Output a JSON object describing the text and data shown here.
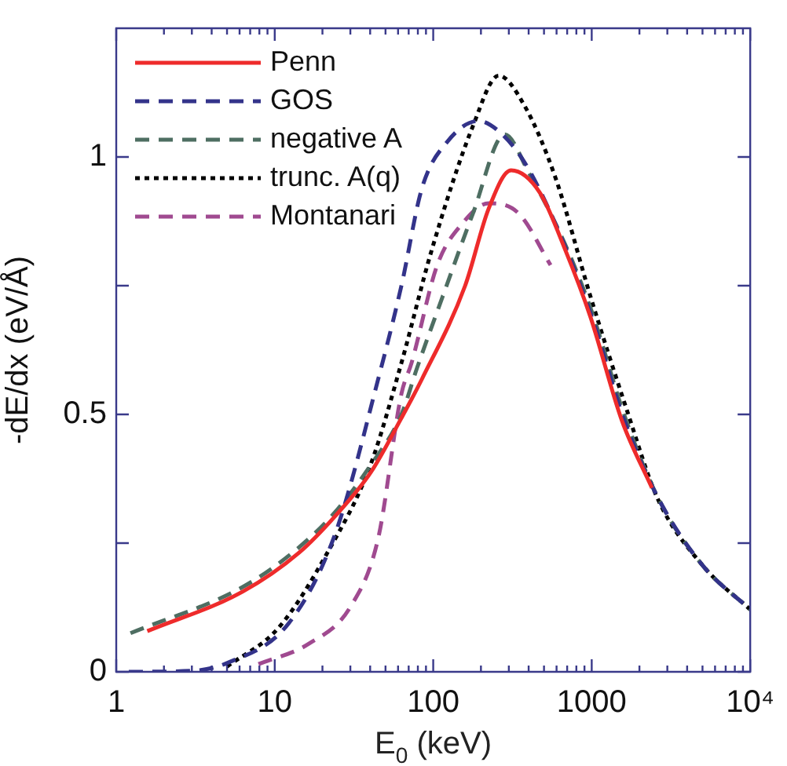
{
  "chart_data": {
    "type": "line",
    "xlabel": "E$_{0}$ (keV)",
    "ylabel": "-dE/dx (eV/Å)",
    "log": "x",
    "grid": false,
    "legend": "top left",
    "marker": "none",
    "xlim": [
      1,
      10000
    ],
    "ylim": [
      0,
      1.25
    ],
    "xticks": [
      1,
      {
        "value": 2,
        "label": null
      },
      {
        "value": 3,
        "label": null
      },
      {
        "value": 4,
        "label": null
      },
      {
        "value": 5,
        "label": null
      },
      {
        "value": 6,
        "label": null
      },
      {
        "value": 7,
        "label": null
      },
      {
        "value": 8,
        "label": null
      },
      {
        "value": 9,
        "label": null
      },
      10,
      {
        "value": 20,
        "label": null
      },
      {
        "value": 30,
        "label": null
      },
      {
        "value": 40,
        "label": null
      },
      {
        "value": 50,
        "label": null
      },
      {
        "value": 60,
        "label": null
      },
      {
        "value": 70,
        "label": null
      },
      {
        "value": 80,
        "label": null
      },
      {
        "value": 90,
        "label": null
      },
      100,
      {
        "value": 200,
        "label": null
      },
      {
        "value": 300,
        "label": null
      },
      {
        "value": 400,
        "label": null
      },
      {
        "value": 500,
        "label": null
      },
      {
        "value": 600,
        "label": null
      },
      {
        "value": 700,
        "label": null
      },
      {
        "value": 800,
        "label": null
      },
      {
        "value": 900,
        "label": null
      },
      1000,
      {
        "value": 2000,
        "label": null
      },
      {
        "value": 3000,
        "label": null
      },
      {
        "value": 4000,
        "label": null
      },
      {
        "value": 5000,
        "label": null
      },
      {
        "value": 6000,
        "label": null
      },
      {
        "value": 7000,
        "label": null
      },
      {
        "value": 8000,
        "label": null
      },
      {
        "value": 9000,
        "label": null
      },
      {
        "value": 10000,
        "label": "10⁴"
      }
    ],
    "yticks": [
      0,
      {
        "value": 0.25,
        "label": null
      },
      0.5,
      {
        "value": 0.75,
        "label": null
      },
      1
    ],
    "series": [
      {
        "name": "Penn",
        "color": "#ee2b2b",
        "line_style": "solid",
        "x": [
          1.57,
          6.3,
          14.2,
          24,
          40.5,
          63,
          85,
          159,
          224,
          310,
          470,
          680,
          980,
          1550,
          2400
        ],
        "values": [
          0.079,
          0.156,
          0.231,
          0.302,
          0.388,
          0.493,
          0.569,
          0.75,
          0.9,
          0.974,
          0.931,
          0.82,
          0.69,
          0.488,
          0.357
        ]
      },
      {
        "name": "GOS",
        "color": "#33338a",
        "line_style": "dashed",
        "x": [
          1.2,
          3,
          5,
          12.3,
          24,
          45,
          63,
          85,
          123,
          193,
          259,
          376,
          590,
          1000,
          1600,
          2600,
          5030,
          10000
        ],
        "values": [
          0,
          0.002,
          0.017,
          0.095,
          0.267,
          0.569,
          0.75,
          0.94,
          1.03,
          1.07,
          1.05,
          0.99,
          0.87,
          0.69,
          0.49,
          0.34,
          0.206,
          0.121
        ]
      },
      {
        "name": "negative A",
        "color": "#4e6e62",
        "line_style": "dashed",
        "x": [
          1.23,
          6.3,
          14,
          24,
          40,
          63,
          79,
          115,
          178,
          283,
          400,
          680,
          1000,
          1600,
          2600,
          5030,
          10000
        ],
        "values": [
          0.075,
          0.165,
          0.24,
          0.31,
          0.4,
          0.5,
          0.59,
          0.73,
          0.89,
          1.044,
          0.97,
          0.83,
          0.7,
          0.5,
          0.34,
          0.206,
          0.121
        ]
      },
      {
        "name": "trunc. A(q)",
        "color": "#000000",
        "line_style": "dotted",
        "x": [
          5,
          10.6,
          22,
          40,
          63,
          98,
          178,
          259,
          376,
          590,
          980,
          1660,
          2600,
          5030,
          10000
        ],
        "values": [
          0.01,
          0.086,
          0.237,
          0.4,
          0.6,
          0.82,
          1.06,
          1.158,
          1.1,
          0.96,
          0.73,
          0.51,
          0.337,
          0.206,
          0.121
        ]
      },
      {
        "name": "Montanari",
        "color": "#a04a90",
        "line_style": "dashed",
        "x": [
          7.9,
          16.5,
          30,
          45,
          63,
          73,
          106,
          152,
          224,
          347,
          550
        ],
        "values": [
          0.015,
          0.055,
          0.126,
          0.26,
          0.54,
          0.6,
          0.79,
          0.87,
          0.91,
          0.89,
          0.79
        ]
      }
    ]
  }
}
